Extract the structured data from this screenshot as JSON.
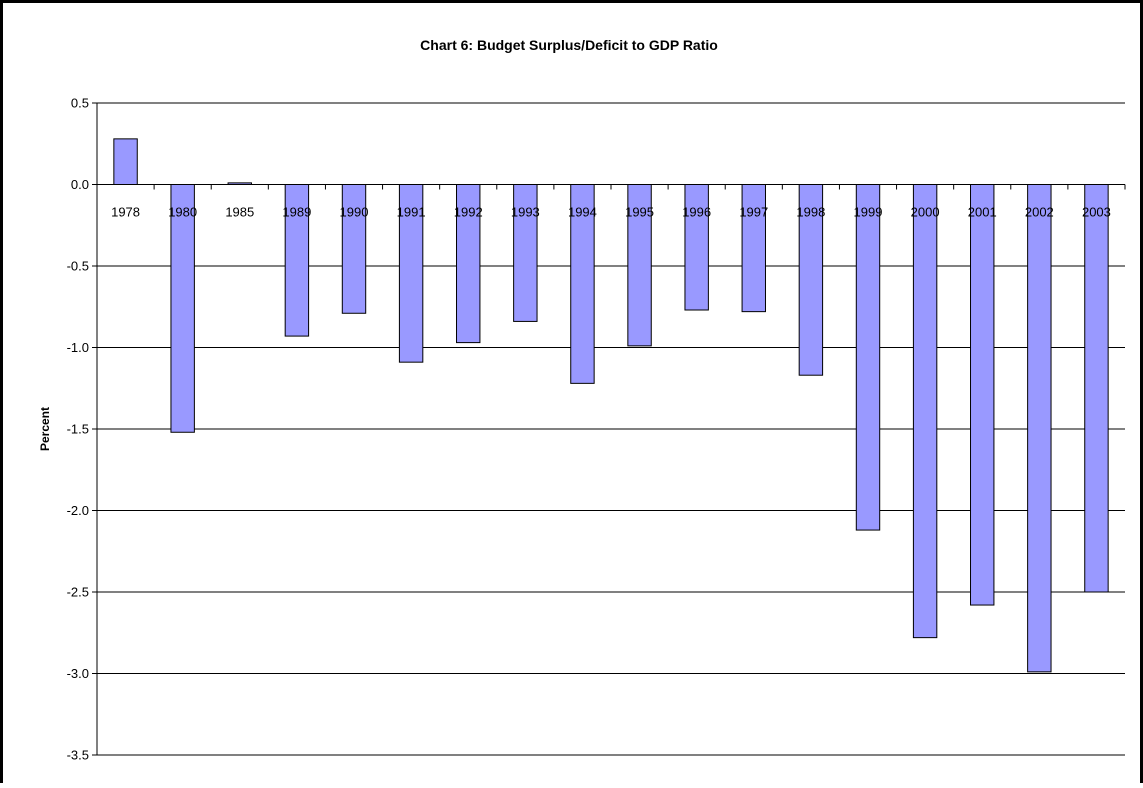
{
  "chart_data": {
    "type": "bar",
    "title": "Chart 6: Budget Surplus/Deficit to GDP Ratio",
    "xlabel": "",
    "ylabel": "Percent",
    "ylim": [
      -3.5,
      0.5
    ],
    "yticks": [
      "0.5",
      "0.0",
      "-0.5",
      "-1.0",
      "-1.5",
      "-2.0",
      "-2.5",
      "-3.0",
      "-3.5"
    ],
    "grid": true,
    "categories": [
      "1978",
      "1980",
      "1985",
      "1989",
      "1990",
      "1991",
      "1992",
      "1993",
      "1994",
      "1995",
      "1996",
      "1997",
      "1998",
      "1999",
      "2000",
      "2001",
      "2002",
      "2003"
    ],
    "values": [
      0.28,
      -1.52,
      0.01,
      -0.93,
      -0.79,
      -1.09,
      -0.97,
      -0.84,
      -1.22,
      -0.99,
      -0.77,
      -0.78,
      -1.17,
      -2.12,
      -2.78,
      -2.58,
      -2.99,
      -2.5
    ],
    "bar_color": "#9999ff",
    "bar_edge_color": "#000000"
  }
}
